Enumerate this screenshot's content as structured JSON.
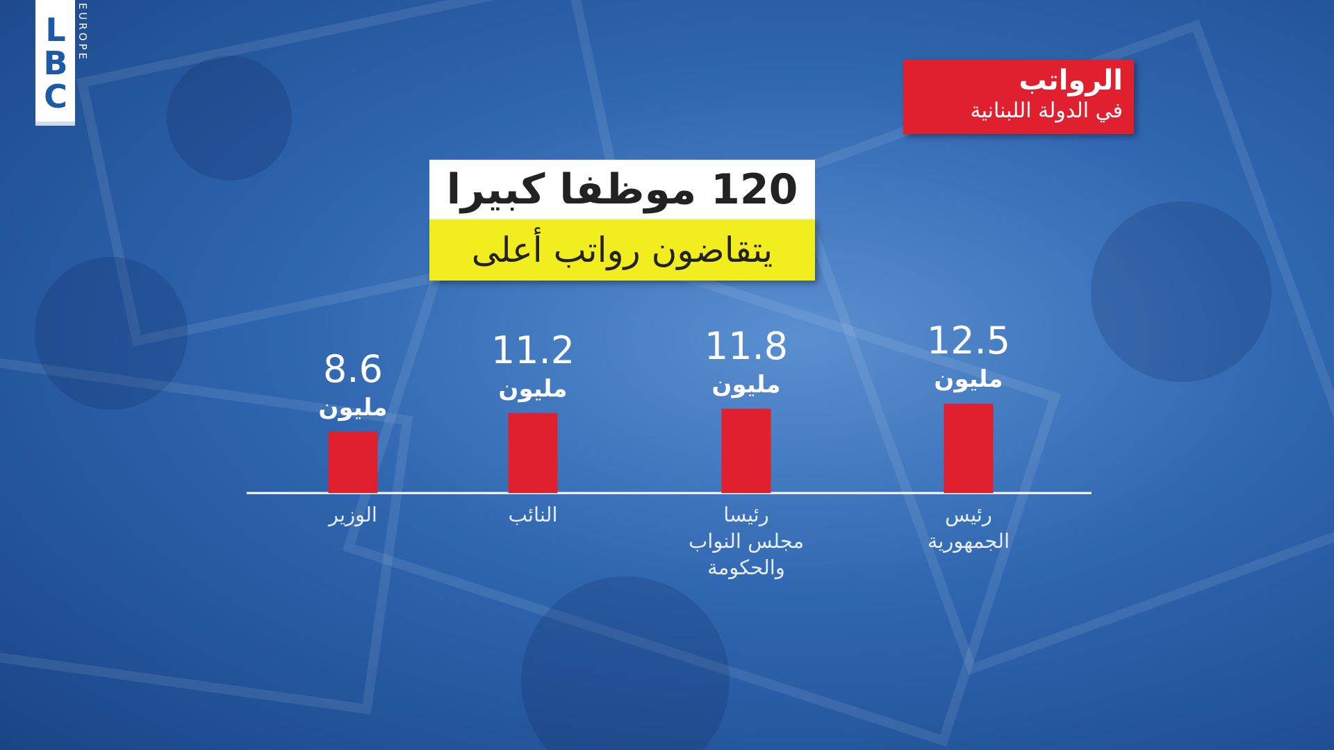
{
  "logo": {
    "main": "LBC",
    "sub": "EUROPE"
  },
  "chart_data": {
    "type": "bar",
    "title": "الرواتب",
    "subtitle": "في الدولة اللبنانية",
    "headline": "120 موظفا كبيرا",
    "subheadline": "يتقاضون رواتب أعلى",
    "unit": "مليون",
    "categories": [
      "رئيس\nالجمهورية",
      "رئيسا\nمجلس النواب\nوالحكومة",
      "النائب",
      "الوزير"
    ],
    "values": [
      12.5,
      11.8,
      11.2,
      8.6
    ],
    "color": "#e0202e"
  }
}
